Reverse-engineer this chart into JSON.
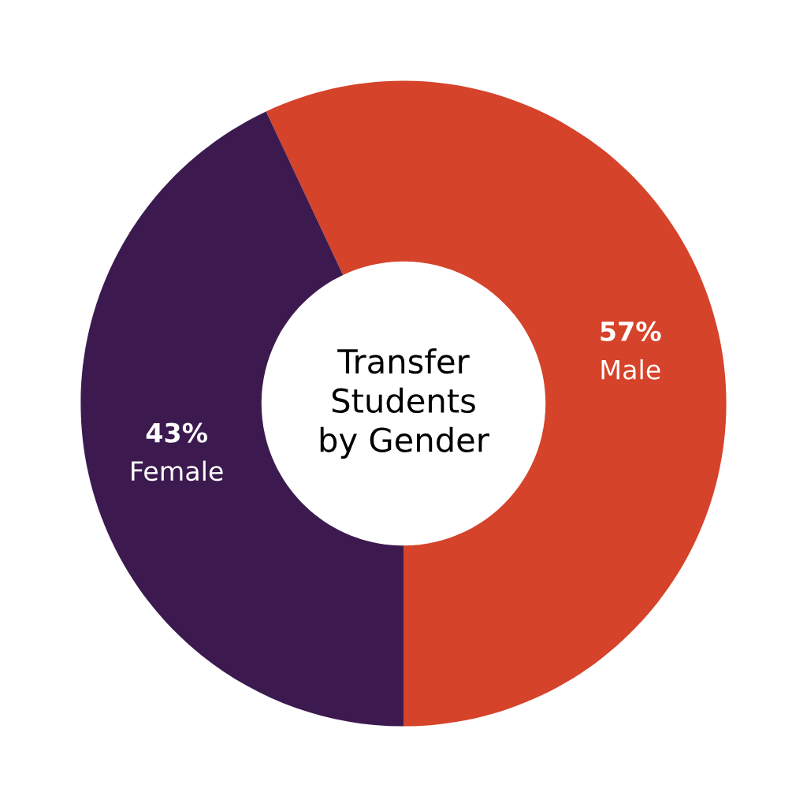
{
  "chart_data": {
    "type": "donut",
    "title": "Transfer\nStudents\nby Gender",
    "categories": [
      "Male",
      "Female"
    ],
    "values": [
      57,
      43
    ],
    "value_labels": [
      "57%",
      "43%"
    ],
    "colors": [
      "#d5432a",
      "#3c1a4f"
    ],
    "legend": false
  }
}
